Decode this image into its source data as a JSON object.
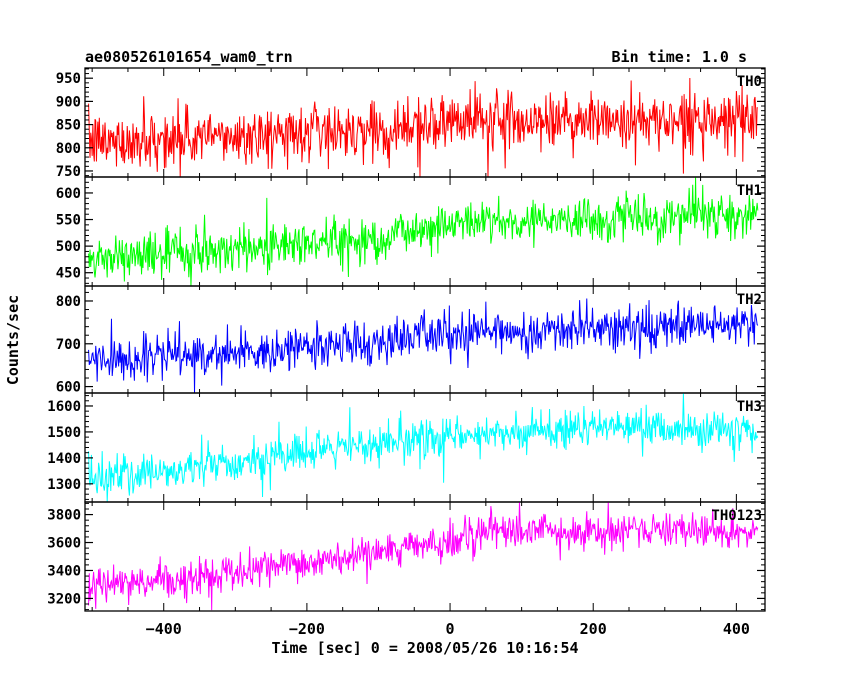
{
  "chart_data": {
    "type": "line",
    "title_left": "ae080526101654_wam0_trn",
    "title_right": "Bin time: 1.0 s",
    "xlabel": "Time [sec] 0 = 2008/05/26 10:16:54",
    "ylabel": "Counts/sec",
    "xlim": [
      -510,
      440
    ],
    "x_ticks": [
      "−400",
      "−200",
      "0",
      "200",
      "400"
    ],
    "x_tick_values": [
      -400,
      -200,
      0,
      200,
      400
    ],
    "x_range": [
      -505,
      430
    ],
    "panels": [
      {
        "name": "TH0",
        "color": "#ff0000",
        "ylim": [
          737,
          972
        ],
        "y_ticks": [
          "750",
          "800",
          "850",
          "900",
          "950"
        ],
        "y_tick_values": [
          750,
          800,
          850,
          900,
          950
        ],
        "trend": [
          [
            -505,
            812
          ],
          [
            -300,
            825
          ],
          [
            -100,
            840
          ],
          [
            0,
            860
          ],
          [
            430,
            860
          ]
        ],
        "noise": 30,
        "min_clip": 737,
        "max_clip": 972
      },
      {
        "name": "TH1",
        "color": "#00ff00",
        "ylim": [
          425,
          630
        ],
        "y_ticks": [
          "450",
          "500",
          "550",
          "600"
        ],
        "y_tick_values": [
          450,
          500,
          550,
          600
        ],
        "trend": [
          [
            -505,
            475
          ],
          [
            -300,
            495
          ],
          [
            -100,
            515
          ],
          [
            0,
            545
          ],
          [
            430,
            560
          ]
        ],
        "noise": 22,
        "min_clip": 425,
        "max_clip": 630
      },
      {
        "name": "TH2",
        "color": "#0000ff",
        "ylim": [
          585,
          835
        ],
        "y_ticks": [
          "600",
          "700",
          "800"
        ],
        "y_tick_values": [
          600,
          700,
          800
        ],
        "trend": [
          [
            -505,
            660
          ],
          [
            -300,
            680
          ],
          [
            -100,
            705
          ],
          [
            0,
            725
          ],
          [
            430,
            745
          ]
        ],
        "noise": 25,
        "min_clip": 585,
        "max_clip": 835
      },
      {
        "name": "TH3",
        "color": "#00ffff",
        "ylim": [
          1230,
          1650
        ],
        "y_ticks": [
          "1300",
          "1400",
          "1500",
          "1600"
        ],
        "y_tick_values": [
          1300,
          1400,
          1500,
          1600
        ],
        "trend": [
          [
            -505,
            1320
          ],
          [
            -300,
            1380
          ],
          [
            -100,
            1450
          ],
          [
            0,
            1490
          ],
          [
            200,
            1520
          ],
          [
            430,
            1500
          ]
        ],
        "noise": 38,
        "min_clip": 1230,
        "max_clip": 1650
      },
      {
        "name": "TH0123",
        "color": "#ff00ff",
        "ylim": [
          3110,
          3890
        ],
        "y_ticks": [
          "3200",
          "3400",
          "3600",
          "3800"
        ],
        "y_tick_values": [
          3200,
          3400,
          3600,
          3800
        ],
        "trend": [
          [
            -505,
            3280
          ],
          [
            -300,
            3380
          ],
          [
            -100,
            3520
          ],
          [
            0,
            3610
          ],
          [
            30,
            3680
          ],
          [
            430,
            3690
          ]
        ],
        "noise": 60,
        "min_clip": 3110,
        "max_clip": 3890
      }
    ]
  }
}
